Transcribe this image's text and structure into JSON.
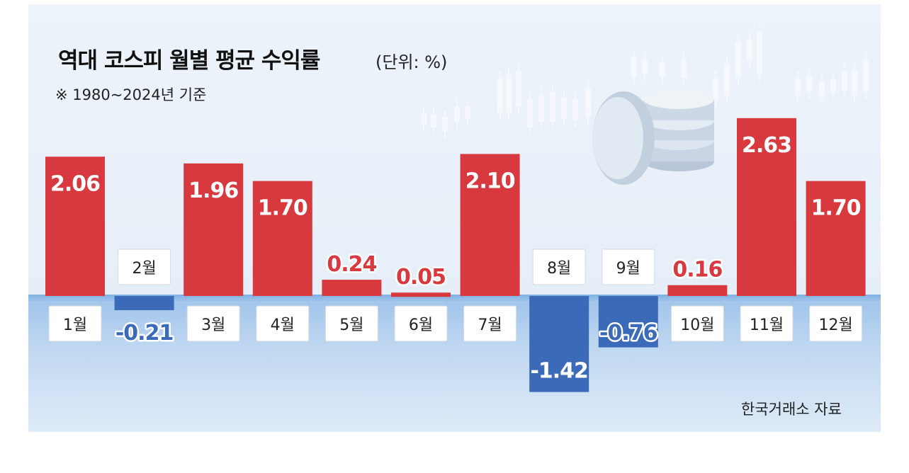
{
  "header": {
    "title": "역대 코스피 월별 평균 수익률",
    "unit": "(단위: %)",
    "subtitle": "※ 1980~2024년 기준"
  },
  "source": "한국거래소 자료",
  "colors": {
    "positive": "#d8393f",
    "negative": "#3a6ab8",
    "background": "#e8f0f9"
  },
  "chart_data": {
    "type": "bar",
    "title": "역대 코스피 월별 평균 수익률",
    "categories": [
      "1월",
      "2월",
      "3월",
      "4월",
      "5월",
      "6월",
      "7월",
      "8월",
      "9월",
      "10월",
      "11월",
      "12월"
    ],
    "values": [
      2.06,
      -0.21,
      1.96,
      1.7,
      0.24,
      0.05,
      2.1,
      -1.42,
      -0.76,
      0.16,
      2.63,
      1.7
    ],
    "labels": [
      "2.06",
      "-0.21",
      "1.96",
      "1.70",
      "0.24",
      "0.05",
      "2.10",
      "-1.42",
      "-0.76",
      "0.16",
      "2.63",
      "1.70"
    ],
    "ylabel": "",
    "ylim": [
      -1.5,
      2.8
    ],
    "grid": false,
    "legend": "none"
  }
}
